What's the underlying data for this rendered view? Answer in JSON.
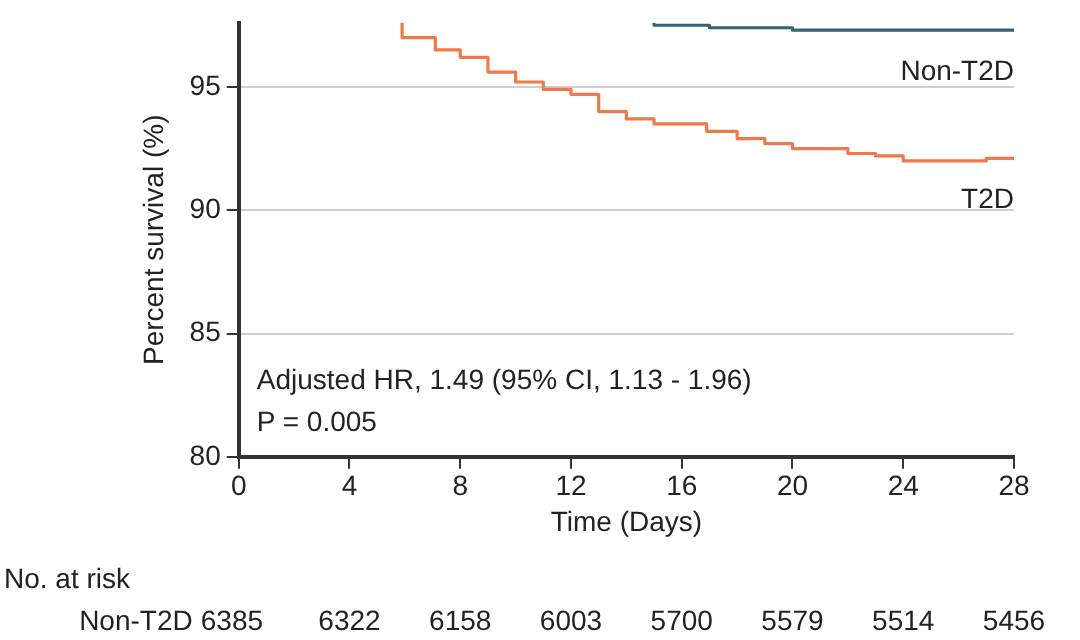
{
  "chart_data": {
    "type": "step",
    "ylabel": "Percent survival (%)",
    "xlabel": "Time (Days)",
    "xlim": [
      0,
      28
    ],
    "xticks": [
      0,
      4,
      8,
      12,
      16,
      20,
      24,
      28
    ],
    "ylim": [
      80,
      97.6
    ],
    "yticks": [
      80,
      85,
      90,
      95
    ],
    "grid": "y",
    "legend": false,
    "marker": "none",
    "series": [
      {
        "name": "Non-T2D",
        "color": "#2f6577",
        "x": [
          15,
          17,
          20,
          24,
          28
        ],
        "values": [
          97.6,
          97.5,
          97.4,
          97.3,
          97.3
        ]
      },
      {
        "name": "T2D",
        "color": "#ee7a4c",
        "x": [
          5.9,
          7.1,
          8,
          9,
          10,
          11,
          12,
          13,
          14,
          15,
          16.9,
          18,
          19,
          20,
          22,
          23,
          24,
          27,
          28
        ],
        "values": [
          97.6,
          97,
          96.5,
          96.2,
          95.6,
          95.2,
          94.9,
          94.7,
          94,
          93.7,
          93.5,
          93.2,
          92.9,
          92.7,
          92.5,
          92.3,
          92.2,
          92,
          92.1
        ]
      }
    ],
    "annotations": [
      "Adjusted HR, 1.49 (95% CI, 1.13 - 1.96)",
      "P = 0.005",
      "No. at risk",
      "Non-T2D",
      "6385",
      "6322",
      "6158",
      "6003",
      "5700",
      "5579",
      "5514",
      "5456"
    ]
  }
}
